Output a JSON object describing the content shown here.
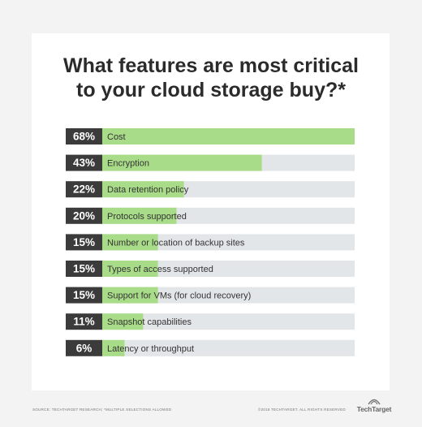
{
  "title": {
    "line1": "What features are most critical",
    "line2": "to your cloud storage buy?*"
  },
  "chart_data": {
    "type": "bar",
    "orientation": "horizontal",
    "categories": [
      "Cost",
      "Encryption",
      "Data retention policy",
      "Protocols supported",
      "Number or location of backup sites",
      "Types of access supported",
      "Support for VMs (for cloud recovery)",
      "Snapshot capabilities",
      "Latency or throughput"
    ],
    "values": [
      68,
      43,
      22,
      20,
      15,
      15,
      15,
      11,
      6
    ],
    "value_labels": [
      "68%",
      "43%",
      "22%",
      "20%",
      "15%",
      "15%",
      "15%",
      "11%",
      "6%"
    ],
    "xlim": [
      0,
      68
    ],
    "grid": false,
    "legend": "none"
  },
  "colors": {
    "bar_fill": "#a9dc88",
    "bar_track": "#e3e6e8",
    "label_box": "#3b3b3b",
    "label_text": "#ffffff",
    "category_text": "#333333"
  },
  "footer": {
    "source": "SOURCE: TECHTARGET RESEARCH; *MULTIPLE SELECTIONS ALLOWED",
    "copyright": "©2018 TECHTARGET. ALL RIGHTS RESERVED",
    "logo_text": "TechTarget",
    "logo_icon": "techtarget-logo-icon"
  }
}
